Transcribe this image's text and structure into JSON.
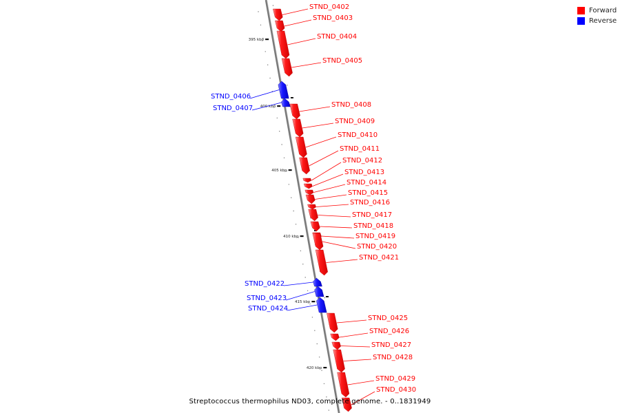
{
  "legend": {
    "forward_label": "Forward",
    "reverse_label": "Reverse",
    "forward_color": "#ff0000",
    "reverse_color": "#0000ff"
  },
  "caption": "Streptococcus thermophilus ND03, complete genome. - 0..1831949",
  "ruler": {
    "unit": "kbp",
    "ticks": [
      {
        "label": "395 kbp",
        "kbp": 395
      },
      {
        "label": "400 kbp",
        "kbp": 400
      },
      {
        "label": "405 kbp",
        "kbp": 405
      },
      {
        "label": "410 kbp",
        "kbp": 410
      },
      {
        "label": "415 kbp",
        "kbp": 415
      },
      {
        "label": "420 kbp",
        "kbp": 420
      }
    ]
  },
  "genes": [
    {
      "name": "STND_0402",
      "strand": "forward"
    },
    {
      "name": "STND_0403",
      "strand": "forward"
    },
    {
      "name": "STND_0404",
      "strand": "forward"
    },
    {
      "name": "STND_0405",
      "strand": "forward"
    },
    {
      "name": "STND_0406",
      "strand": "reverse"
    },
    {
      "name": "STND_0407",
      "strand": "reverse"
    },
    {
      "name": "STND_0408",
      "strand": "forward"
    },
    {
      "name": "STND_0409",
      "strand": "forward"
    },
    {
      "name": "STND_0410",
      "strand": "forward"
    },
    {
      "name": "STND_0411",
      "strand": "forward"
    },
    {
      "name": "STND_0412",
      "strand": "forward"
    },
    {
      "name": "STND_0413",
      "strand": "forward"
    },
    {
      "name": "STND_0414",
      "strand": "forward"
    },
    {
      "name": "STND_0415",
      "strand": "forward"
    },
    {
      "name": "STND_0416",
      "strand": "forward"
    },
    {
      "name": "STND_0417",
      "strand": "forward"
    },
    {
      "name": "STND_0418",
      "strand": "forward"
    },
    {
      "name": "STND_0419",
      "strand": "forward"
    },
    {
      "name": "STND_0420",
      "strand": "forward"
    },
    {
      "name": "STND_0421",
      "strand": "forward"
    },
    {
      "name": "STND_0422",
      "strand": "reverse"
    },
    {
      "name": "STND_0423",
      "strand": "reverse"
    },
    {
      "name": "STND_0424",
      "strand": "reverse"
    },
    {
      "name": "STND_0425",
      "strand": "forward"
    },
    {
      "name": "STND_0426",
      "strand": "forward"
    },
    {
      "name": "STND_0427",
      "strand": "forward"
    },
    {
      "name": "STND_0428",
      "strand": "forward"
    },
    {
      "name": "STND_0429",
      "strand": "forward"
    },
    {
      "name": "STND_0430",
      "strand": "forward"
    }
  ]
}
